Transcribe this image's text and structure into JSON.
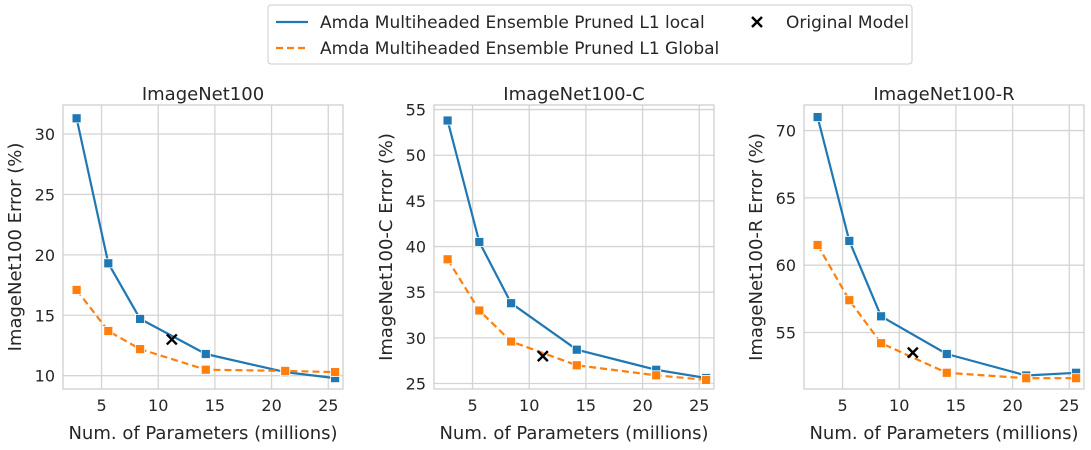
{
  "colors": {
    "local": "#1f77b4",
    "global": "#ff7f0e",
    "original": "#000000",
    "grid": "#d4d4d4",
    "frame": "#cccccc"
  },
  "legend": {
    "entries": [
      {
        "label": "Amda Multiheaded Ensemble Pruned L1 local",
        "style": "solid-line"
      },
      {
        "label": "Amda Multiheaded Ensemble Pruned L1 Global",
        "style": "dashed-line"
      },
      {
        "label": "Original Model",
        "style": "x-marker"
      }
    ]
  },
  "chart_data": [
    {
      "type": "line",
      "title": "ImageNet100",
      "xlabel": "Num. of Parameters (millions)",
      "ylabel": "ImageNet100 Error (%)",
      "xlim": [
        1.6,
        26.3
      ],
      "ylim": [
        8.9,
        32.4
      ],
      "xticks": [
        5,
        10,
        15,
        20,
        25
      ],
      "yticks": [
        10,
        15,
        20,
        25,
        30
      ],
      "grid": true,
      "series": [
        {
          "name": "Amda Multiheaded Ensemble Pruned L1 local",
          "x": [
            2.8,
            5.6,
            8.4,
            14.2,
            21.2,
            25.6
          ],
          "y": [
            31.3,
            19.3,
            14.7,
            11.8,
            10.3,
            9.8
          ]
        },
        {
          "name": "Amda Multiheaded Ensemble Pruned L1 Global",
          "x": [
            2.8,
            5.6,
            8.4,
            14.2,
            21.2,
            25.6
          ],
          "y": [
            17.1,
            13.7,
            12.2,
            10.5,
            10.4,
            10.3
          ]
        }
      ],
      "original": {
        "name": "Original Model",
        "x": 11.2,
        "y": 13.0
      }
    },
    {
      "type": "line",
      "title": "ImageNet100-C",
      "xlabel": "Num. of Parameters (millions)",
      "ylabel": "ImageNet100-C Error (%)",
      "xlim": [
        1.6,
        26.3
      ],
      "ylim": [
        24.4,
        55.5
      ],
      "xticks": [
        5,
        10,
        15,
        20,
        25
      ],
      "yticks": [
        25,
        30,
        35,
        40,
        45,
        50,
        55
      ],
      "grid": true,
      "series": [
        {
          "name": "Amda Multiheaded Ensemble Pruned L1 local",
          "x": [
            2.8,
            5.6,
            8.4,
            14.2,
            21.2,
            25.6
          ],
          "y": [
            53.8,
            40.5,
            33.8,
            28.7,
            26.5,
            25.6
          ]
        },
        {
          "name": "Amda Multiheaded Ensemble Pruned L1 Global",
          "x": [
            2.8,
            5.6,
            8.4,
            14.2,
            21.2,
            25.6
          ],
          "y": [
            38.6,
            33.0,
            29.6,
            27.0,
            25.9,
            25.4
          ]
        }
      ],
      "original": {
        "name": "Original Model",
        "x": 11.2,
        "y": 28.0
      }
    },
    {
      "type": "line",
      "title": "ImageNet100-R",
      "xlabel": "Num. of Parameters (millions)",
      "ylabel": "ImageNet100-R Error (%)",
      "xlim": [
        1.6,
        26.3
      ],
      "ylim": [
        50.8,
        71.9
      ],
      "xticks": [
        5,
        10,
        15,
        20,
        25
      ],
      "yticks": [
        55,
        60,
        65,
        70
      ],
      "grid": true,
      "series": [
        {
          "name": "Amda Multiheaded Ensemble Pruned L1 local",
          "x": [
            2.8,
            5.6,
            8.4,
            14.2,
            21.2,
            25.6
          ],
          "y": [
            71.0,
            61.8,
            56.2,
            53.4,
            51.8,
            52.0
          ]
        },
        {
          "name": "Amda Multiheaded Ensemble Pruned L1 Global",
          "x": [
            2.8,
            5.6,
            8.4,
            14.2,
            21.2,
            25.6
          ],
          "y": [
            61.5,
            57.4,
            54.2,
            52.0,
            51.6,
            51.6
          ]
        }
      ],
      "original": {
        "name": "Original Model",
        "x": 11.2,
        "y": 53.5
      }
    }
  ]
}
